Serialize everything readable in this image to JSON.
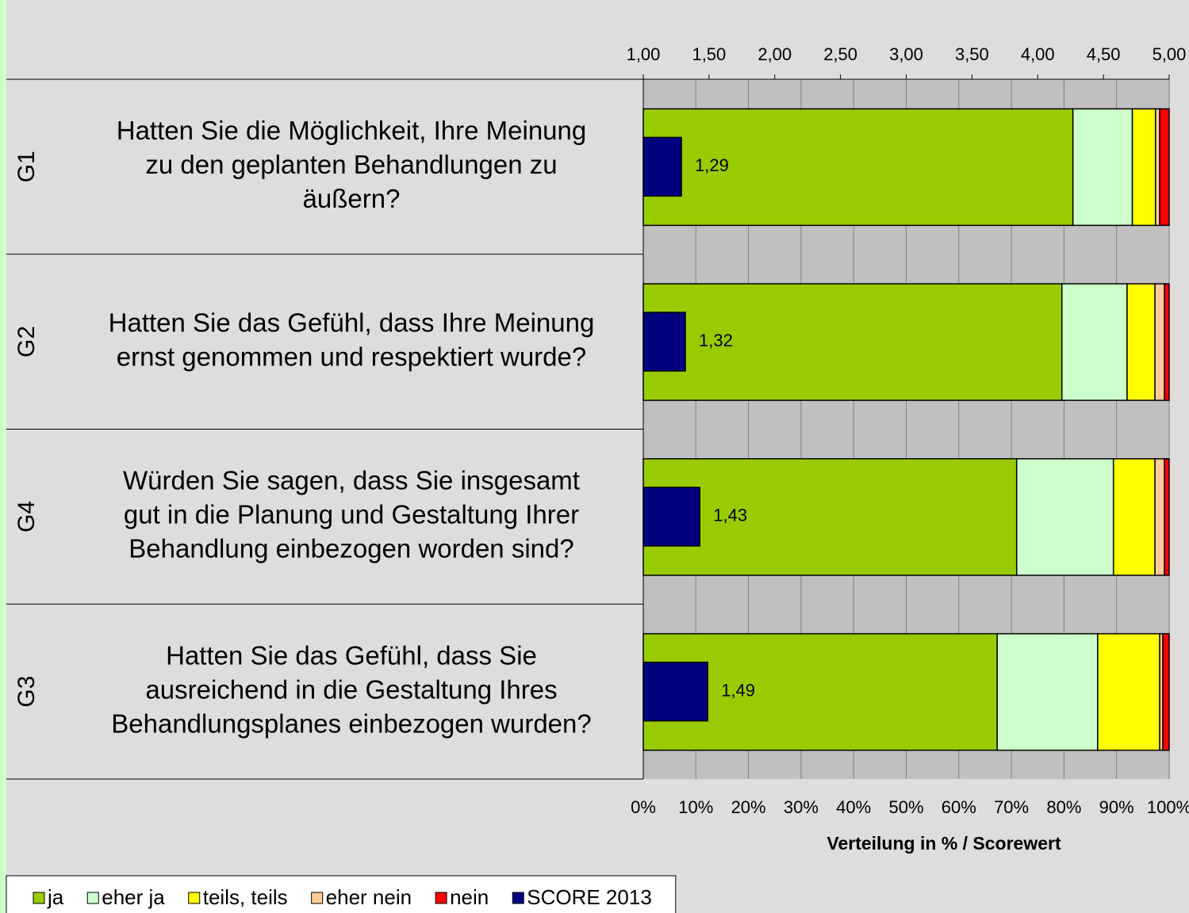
{
  "chart_data": {
    "type": "stacked-bar-horizontal",
    "category_codes": [
      "G1",
      "G2",
      "G4",
      "G3"
    ],
    "categories": [
      [
        "Hatten Sie die Möglichkeit, Ihre Meinung",
        "zu den geplanten Behandlungen zu",
        "äußern?"
      ],
      [
        "Hatten Sie das Gefühl, dass Ihre Meinung",
        "ernst genommen und respektiert wurde?"
      ],
      [
        "Würden Sie sagen, dass Sie insgesamt",
        "gut in die Planung und Gestaltung Ihrer",
        "Behandlung einbezogen worden sind?"
      ],
      [
        "Hatten Sie das Gefühl, dass Sie",
        "ausreichend in die Gestaltung Ihres",
        "Behandlungsplanes einbezogen wurden?"
      ]
    ],
    "series": [
      {
        "name": "ja",
        "color": "#99cc00",
        "values": [
          81.7,
          79.6,
          71.0,
          67.3
        ]
      },
      {
        "name": "eher ja",
        "color": "#ccffcc",
        "values": [
          11.3,
          12.4,
          18.4,
          19.1
        ]
      },
      {
        "name": "teils, teils",
        "color": "#ffff00",
        "values": [
          4.4,
          5.3,
          7.9,
          11.8
        ]
      },
      {
        "name": "eher nein",
        "color": "#ffcc99",
        "values": [
          0.8,
          1.8,
          1.8,
          0.6
        ]
      },
      {
        "name": "nein",
        "color": "#ff0000",
        "values": [
          1.8,
          0.9,
          0.9,
          1.2
        ]
      },
      {
        "name": "SCORE 2013",
        "color": "#000080",
        "axis": "x2",
        "values": [
          1.29,
          1.32,
          1.43,
          1.49
        ],
        "value_labels": [
          "1,29",
          "1,32",
          "1,43",
          "1,49"
        ]
      }
    ],
    "xlim": [
      0,
      100
    ],
    "xticks": [
      {
        "value": 0,
        "label": "0%"
      },
      {
        "value": 10,
        "label": "10%"
      },
      {
        "value": 20,
        "label": "20%"
      },
      {
        "value": 30,
        "label": "30%"
      },
      {
        "value": 40,
        "label": "40%"
      },
      {
        "value": 50,
        "label": "50%"
      },
      {
        "value": 60,
        "label": "60%"
      },
      {
        "value": 70,
        "label": "70%"
      },
      {
        "value": 80,
        "label": "80%"
      },
      {
        "value": 90,
        "label": "90%"
      },
      {
        "value": 100,
        "label": "100%"
      }
    ],
    "x2lim": [
      1,
      5
    ],
    "x2ticks": [
      {
        "value": 1,
        "label": "1,00"
      },
      {
        "value": 1.5,
        "label": "1,50"
      },
      {
        "value": 2,
        "label": "2,00"
      },
      {
        "value": 2.5,
        "label": "2,50"
      },
      {
        "value": 3,
        "label": "3,00"
      },
      {
        "value": 3.5,
        "label": "3,50"
      },
      {
        "value": 4,
        "label": "4,00"
      },
      {
        "value": 4.5,
        "label": "4,50"
      },
      {
        "value": 5,
        "label": "5,00"
      }
    ],
    "xlabel": "Verteilung in % / Scorewert",
    "grid": true,
    "legend": "bottom-left"
  }
}
